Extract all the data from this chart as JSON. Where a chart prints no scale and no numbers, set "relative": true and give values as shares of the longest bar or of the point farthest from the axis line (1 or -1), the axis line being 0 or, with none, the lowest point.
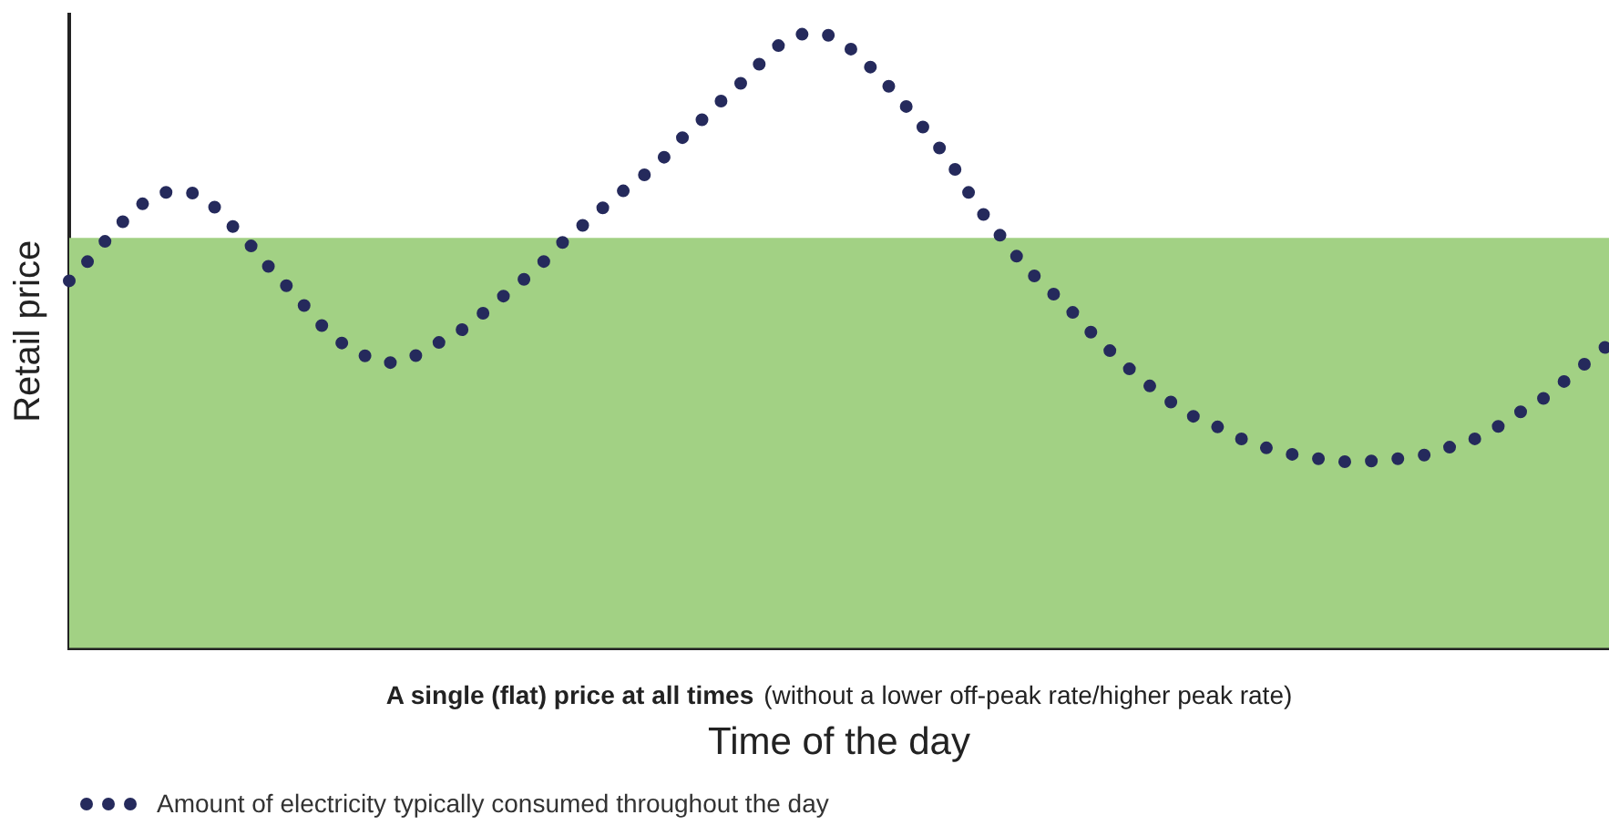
{
  "chart_data": {
    "type": "line",
    "relative": true,
    "xlabel": "Time of the day",
    "ylabel": "Retail price",
    "categories": [
      null,
      null,
      null,
      null,
      null,
      null,
      null,
      null,
      null,
      null,
      null,
      null,
      null,
      null,
      null,
      null,
      null,
      null,
      null,
      null,
      null,
      null,
      null,
      null,
      null,
      null,
      null,
      null,
      null,
      null,
      null,
      null,
      null,
      null,
      null,
      null,
      null,
      null,
      null,
      null,
      null,
      null,
      null,
      null,
      null,
      null,
      null,
      null,
      null,
      null,
      null,
      null,
      null,
      null,
      null,
      null,
      null,
      null,
      null,
      null,
      null,
      null,
      null,
      null,
      null,
      null,
      null,
      null,
      null
    ],
    "series": [
      {
        "name": "Amount of electricity typically consumed throughout the day",
        "color": "#252a5c",
        "line_style": "dotted",
        "values": [
          0.597,
          0.636,
          0.679,
          0.715,
          0.739,
          0.742,
          0.73,
          0.694,
          0.655,
          0.612,
          0.573,
          0.53,
          0.497,
          0.476,
          0.464,
          0.47,
          0.491,
          0.509,
          0.536,
          0.567,
          0.597,
          0.63,
          0.667,
          0.697,
          0.73,
          0.758,
          0.788,
          0.827,
          0.861,
          0.897,
          0.93,
          0.97,
          0.994,
          1.0,
          0.988,
          0.958,
          0.921,
          0.879,
          0.833,
          0.785,
          0.724,
          0.676,
          0.63,
          0.591,
          0.558,
          0.518,
          0.482,
          0.448,
          0.418,
          0.391,
          0.37,
          0.355,
          0.336,
          0.324,
          0.315,
          0.309,
          0.303,
          0.303,
          0.306,
          0.309,
          0.315,
          0.327,
          0.339,
          0.358,
          0.382,
          0.403,
          0.433,
          0.464,
          0.494
        ]
      }
    ],
    "bands": [
      {
        "axis": "y",
        "from": 0,
        "to": 0.667,
        "color": "#a2d184"
      }
    ],
    "annotations": [
      "A single (flat) price at all times",
      "(without a lower off-peak rate/higher peak rate)"
    ],
    "grid": false,
    "legend": "bottom"
  }
}
